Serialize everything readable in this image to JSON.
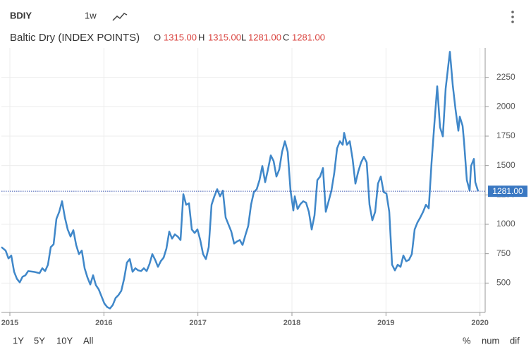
{
  "header": {
    "symbol": "BDIY",
    "interval": "1w",
    "name": "Baltic Dry (INDEX POINTS)",
    "quote": [
      {
        "key": "O",
        "value": "1315.00"
      },
      {
        "key": "H",
        "value": "1315.00"
      },
      {
        "key": "L",
        "value": "1281.00"
      },
      {
        "key": "C",
        "value": "1281.00"
      }
    ]
  },
  "ranges": [
    {
      "label": "1Y",
      "active": false
    },
    {
      "label": "5Y",
      "active": true
    },
    {
      "label": "10Y",
      "active": false
    },
    {
      "label": "All",
      "active": false
    }
  ],
  "modes": [
    {
      "label": "%",
      "active": false
    },
    {
      "label": "num",
      "active": true
    },
    {
      "label": "dif",
      "active": false
    }
  ],
  "chart_data": {
    "type": "line",
    "grid": true,
    "color": "#3f87c9",
    "xlim": [
      2014.91,
      2020.055
    ],
    "xticks": [
      2015,
      2016,
      2017,
      2018,
      2019,
      2020
    ],
    "ylim": [
      250,
      2500
    ],
    "yticks": [
      500,
      750,
      1000,
      1250,
      1500,
      1750,
      2000,
      2250
    ],
    "last_price": {
      "value": 1281,
      "label": "1281.00"
    },
    "x": [
      2014.91,
      2014.955,
      2014.985,
      2015.015,
      2015.045,
      2015.075,
      2015.105,
      2015.135,
      2015.165,
      2015.195,
      2015.255,
      2015.315,
      2015.345,
      2015.375,
      2015.405,
      2015.435,
      2015.465,
      2015.495,
      2015.525,
      2015.555,
      2015.585,
      2015.615,
      2015.645,
      2015.675,
      2015.705,
      2015.735,
      2015.765,
      2015.795,
      2015.825,
      2015.855,
      2015.885,
      2015.915,
      2015.945,
      2015.975,
      2016.005,
      2016.035,
      2016.065,
      2016.095,
      2016.125,
      2016.155,
      2016.185,
      2016.215,
      2016.245,
      2016.275,
      2016.305,
      2016.335,
      2016.365,
      2016.395,
      2016.425,
      2016.455,
      2016.485,
      2016.515,
      2016.545,
      2016.575,
      2016.605,
      2016.635,
      2016.665,
      2016.695,
      2016.725,
      2016.755,
      2016.785,
      2016.815,
      2016.845,
      2016.875,
      2016.905,
      2016.935,
      2016.965,
      2016.995,
      2017.025,
      2017.055,
      2017.085,
      2017.115,
      2017.145,
      2017.175,
      2017.205,
      2017.235,
      2017.265,
      2017.295,
      2017.325,
      2017.355,
      2017.385,
      2017.415,
      2017.445,
      2017.475,
      2017.505,
      2017.535,
      2017.565,
      2017.595,
      2017.625,
      2017.655,
      2017.685,
      2017.715,
      2017.745,
      2017.775,
      2017.805,
      2017.835,
      2017.865,
      2017.895,
      2017.925,
      2017.955,
      2017.985,
      2018.015,
      2018.03,
      2018.06,
      2018.09,
      2018.12,
      2018.15,
      2018.18,
      2018.21,
      2018.24,
      2018.27,
      2018.3,
      2018.33,
      2018.36,
      2018.39,
      2018.42,
      2018.45,
      2018.48,
      2018.51,
      2018.54,
      2018.555,
      2018.585,
      2018.615,
      2018.645,
      2018.675,
      2018.705,
      2018.735,
      2018.765,
      2018.795,
      2018.825,
      2018.855,
      2018.885,
      2018.915,
      2018.945,
      2018.975,
      2019.005,
      2019.035,
      2019.065,
      2019.095,
      2019.125,
      2019.155,
      2019.185,
      2019.215,
      2019.245,
      2019.275,
      2019.305,
      2019.335,
      2019.365,
      2019.395,
      2019.425,
      2019.455,
      2019.485,
      2019.515,
      2019.545,
      2019.575,
      2019.605,
      2019.635,
      2019.665,
      2019.68,
      2019.71,
      2019.74,
      2019.77,
      2019.785,
      2019.815,
      2019.83,
      2019.86,
      2019.89,
      2019.905,
      2019.935,
      2019.95,
      2019.98
    ],
    "values": [
      806,
      776,
      710,
      734,
      596,
      536,
      506,
      554,
      566,
      602,
      596,
      584,
      626,
      602,
      656,
      806,
      830,
      1046,
      1106,
      1196,
      1058,
      956,
      896,
      950,
      824,
      746,
      776,
      626,
      548,
      488,
      566,
      482,
      446,
      386,
      326,
      296,
      284,
      314,
      374,
      398,
      434,
      536,
      674,
      704,
      596,
      626,
      608,
      602,
      626,
      602,
      662,
      746,
      698,
      638,
      686,
      716,
      794,
      938,
      878,
      914,
      896,
      866,
      1256,
      1166,
      1178,
      956,
      926,
      956,
      866,
      746,
      704,
      806,
      1166,
      1238,
      1298,
      1238,
      1286,
      1058,
      998,
      938,
      836,
      854,
      866,
      824,
      908,
      986,
      1166,
      1274,
      1298,
      1376,
      1496,
      1358,
      1466,
      1586,
      1538,
      1406,
      1466,
      1616,
      1706,
      1616,
      1286,
      1118,
      1238,
      1130,
      1172,
      1196,
      1184,
      1106,
      956,
      1076,
      1376,
      1406,
      1478,
      1106,
      1196,
      1286,
      1436,
      1646,
      1706,
      1676,
      1778,
      1676,
      1706,
      1556,
      1346,
      1448,
      1526,
      1574,
      1526,
      1166,
      1034,
      1106,
      1346,
      1406,
      1274,
      1262,
      1106,
      656,
      608,
      656,
      638,
      734,
      686,
      698,
      746,
      956,
      1016,
      1058,
      1106,
      1166,
      1136,
      1526,
      1856,
      2174,
      1826,
      1748,
      2156,
      2366,
      2468,
      2186,
      1976,
      1796,
      1916,
      1838,
      1706,
      1376,
      1286,
      1496,
      1556,
      1358,
      1281
    ]
  }
}
